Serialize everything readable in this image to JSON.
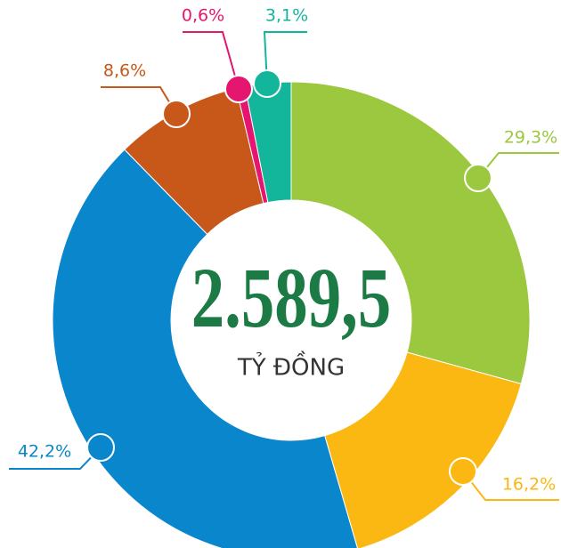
{
  "chart_data": {
    "type": "donut",
    "total": {
      "value": 2589.5,
      "label": "2.589,5"
    },
    "unit": "TỶ ĐỒNG",
    "series": [
      {
        "color": "#9bc83f",
        "value": 29.3,
        "value_label": "29,3%"
      },
      {
        "color": "#fbb813",
        "value": 16.2,
        "value_label": "16,2%"
      },
      {
        "color": "#0a87cc",
        "value": 42.2,
        "value_label": "42,2%"
      },
      {
        "color": "#c8571a",
        "value": 8.6,
        "value_label": "8,6%"
      },
      {
        "color": "#e5166f",
        "value": 0.6,
        "value_label": "0,6%"
      },
      {
        "color": "#13b59b",
        "value": 3.1,
        "value_label": "3,1%"
      }
    ]
  }
}
